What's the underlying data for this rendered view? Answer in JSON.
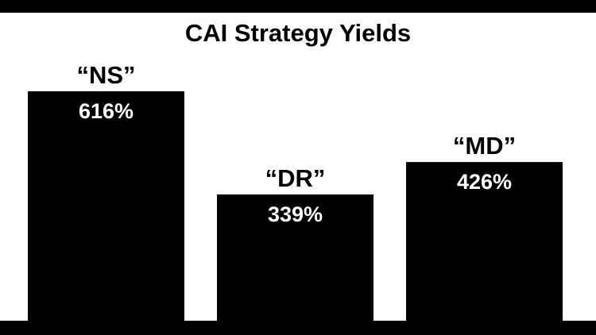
{
  "chart_data": {
    "type": "bar",
    "title": "CAI Strategy Yields",
    "categories": [
      "“NS”",
      "“DR”",
      "“MD”"
    ],
    "values": [
      616,
      339,
      426
    ],
    "value_labels": [
      "616%",
      "339%",
      "426%"
    ],
    "ylim": [
      0,
      800
    ],
    "grid": false,
    "legend": "none",
    "bar_color": "#000000",
    "value_label_color": "#ffffff",
    "background_color": "#ffffff",
    "frame_color": "#000000"
  }
}
